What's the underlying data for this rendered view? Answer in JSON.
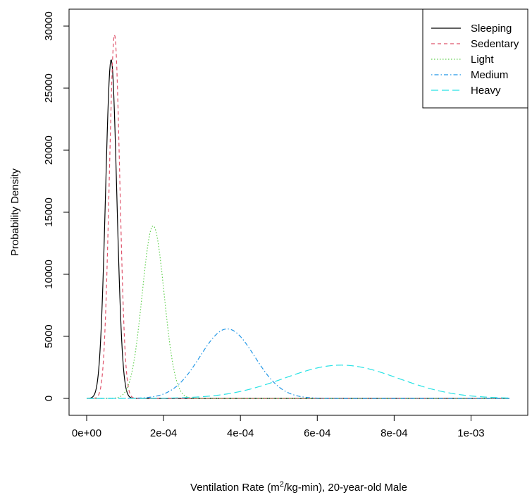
{
  "chart_data": {
    "type": "line",
    "title": "",
    "xlabel_prefix": "Ventilation Rate (m",
    "xlabel_sup": "2",
    "xlabel_suffix": "/kg-min), 20-year-old Male",
    "ylabel": "Probability Density",
    "xlim": [
      0,
      0.0011
    ],
    "ylim": [
      0,
      30000
    ],
    "x_ticks": [
      0,
      0.0002,
      0.0004,
      0.0006,
      0.0008,
      0.001
    ],
    "x_tick_labels": [
      "0e+00",
      "2e-04",
      "4e-04",
      "6e-04",
      "8e-04",
      "1e-03"
    ],
    "y_ticks": [
      0,
      5000,
      10000,
      15000,
      20000,
      25000,
      30000
    ],
    "y_tick_labels": [
      "0",
      "5000",
      "10000",
      "15000",
      "20000",
      "25000",
      "30000"
    ],
    "grid": false,
    "legend_position": "top-right",
    "series": [
      {
        "name": "Sleeping",
        "color": "#000000",
        "dash": "solid",
        "distribution": "normal",
        "mean": 6.37e-05,
        "sd": 1.46e-05,
        "peak": 27300
      },
      {
        "name": "Sedentary",
        "color": "#df536b",
        "dash": "dashed",
        "distribution": "normal",
        "mean": 7.25e-05,
        "sd": 1.36e-05,
        "peak": 29300
      },
      {
        "name": "Light",
        "color": "#61d04f",
        "dash": "dotted",
        "distribution": "normal",
        "mean": 0.000173,
        "sd": 2.85e-05,
        "peak": 13900
      },
      {
        "name": "Medium",
        "color": "#2297e6",
        "dash": "dotdash",
        "distribution": "normal",
        "mean": 0.000366,
        "sd": 7.07e-05,
        "peak": 5600
      },
      {
        "name": "Heavy",
        "color": "#28e2e5",
        "dash": "longdash",
        "distribution": "normal",
        "mean": 0.000662,
        "sd": 0.000148,
        "peak": 2680
      }
    ]
  }
}
